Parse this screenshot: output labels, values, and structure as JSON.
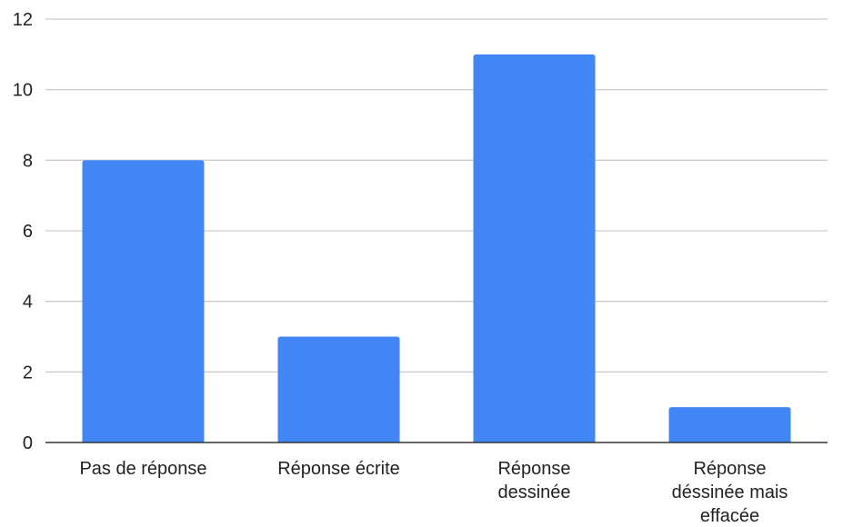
{
  "chart_data": {
    "type": "bar",
    "categories": [
      [
        "Pas de réponse"
      ],
      [
        "Réponse écrite"
      ],
      [
        "Réponse",
        "dessinée"
      ],
      [
        "Réponse",
        "déssinée mais",
        "effacée"
      ]
    ],
    "values": [
      8,
      3,
      11,
      1
    ],
    "title": "",
    "xlabel": "",
    "ylabel": "",
    "ylim": [
      0,
      12
    ],
    "yticks": [
      0,
      2,
      4,
      6,
      8,
      10,
      12
    ],
    "grid": true,
    "legend": "none",
    "colors": {
      "bar": "#4285f4",
      "grid": "#cccccc",
      "axis": "#333333",
      "text": "#222222"
    }
  }
}
